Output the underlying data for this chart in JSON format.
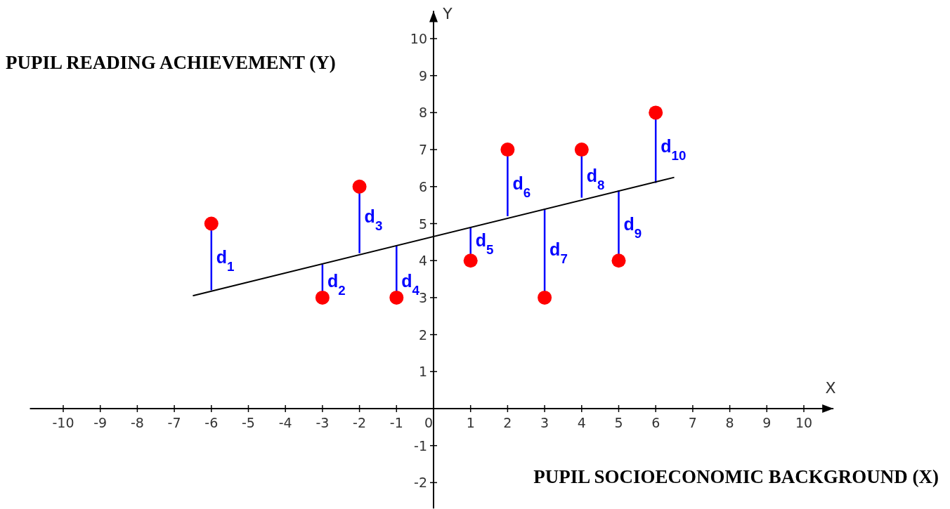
{
  "chart_data": {
    "type": "scatter",
    "xlabel": "PUPIL SOCIOECONOMIC BACKGROUND (X)",
    "ylabel": "PUPIL READING ACHIEVEMENT (Y)",
    "xlim": [
      -10.9,
      10.8
    ],
    "ylim": [
      -2.7,
      10.75
    ],
    "xticks": [
      -10,
      -9,
      -8,
      -7,
      -6,
      -5,
      -4,
      -3,
      -2,
      -1,
      {
        "value": 0,
        "label": "0"
      },
      1,
      2,
      3,
      4,
      5,
      6,
      7,
      8,
      9,
      10
    ],
    "yticks": [
      -2,
      -1,
      1,
      2,
      3,
      4,
      5,
      6,
      7,
      8,
      9,
      10
    ],
    "grid": false,
    "marker": "circle",
    "series": [
      {
        "color": "#ff0000",
        "x": [
          -6,
          -3,
          -2,
          -1,
          1,
          2,
          3,
          4,
          5,
          6
        ],
        "values": [
          5,
          3,
          6,
          3,
          4,
          7,
          3,
          7,
          4,
          8
        ],
        "errors": [
          [
            3.2,
            5
          ],
          [
            3,
            3.9
          ],
          [
            4.2,
            6
          ],
          [
            3,
            4.4
          ],
          [
            4,
            4.9
          ],
          [
            5.2,
            7
          ],
          [
            3,
            5.4
          ],
          [
            5.7,
            7
          ],
          [
            4,
            5.9
          ],
          [
            6.1,
            8
          ]
        ]
      },
      {
        "type": "line",
        "marker": "none",
        "color": "#000000",
        "x": [
          -6.5,
          6.5
        ],
        "values": [
          3.05,
          6.25
        ]
      }
    ],
    "annotations": [
      "X",
      "Y",
      {
        "text": "d$_{1}$",
        "x": -6,
        "y": 4.1
      },
      {
        "text": "d$_{2}$",
        "x": -3,
        "y": 3.45
      },
      {
        "text": "d$_{3}$",
        "x": -2,
        "y": 5.2
      },
      {
        "text": "d$_{4}$",
        "x": -1,
        "y": 3.45
      },
      {
        "text": "d$_{5}$",
        "x": 1,
        "y": 4.55
      },
      {
        "text": "d$_{6}$",
        "x": 2,
        "y": 6.1
      },
      {
        "text": "d$_{7}$",
        "x": 3,
        "y": 4.3
      },
      {
        "text": "d$_{8}$",
        "x": 4,
        "y": 6.3
      },
      {
        "text": "d$_{9}$",
        "x": 5,
        "y": 5.0
      },
      {
        "text": "d$_{10}$",
        "x": 6,
        "y": 7.1
      }
    ]
  }
}
